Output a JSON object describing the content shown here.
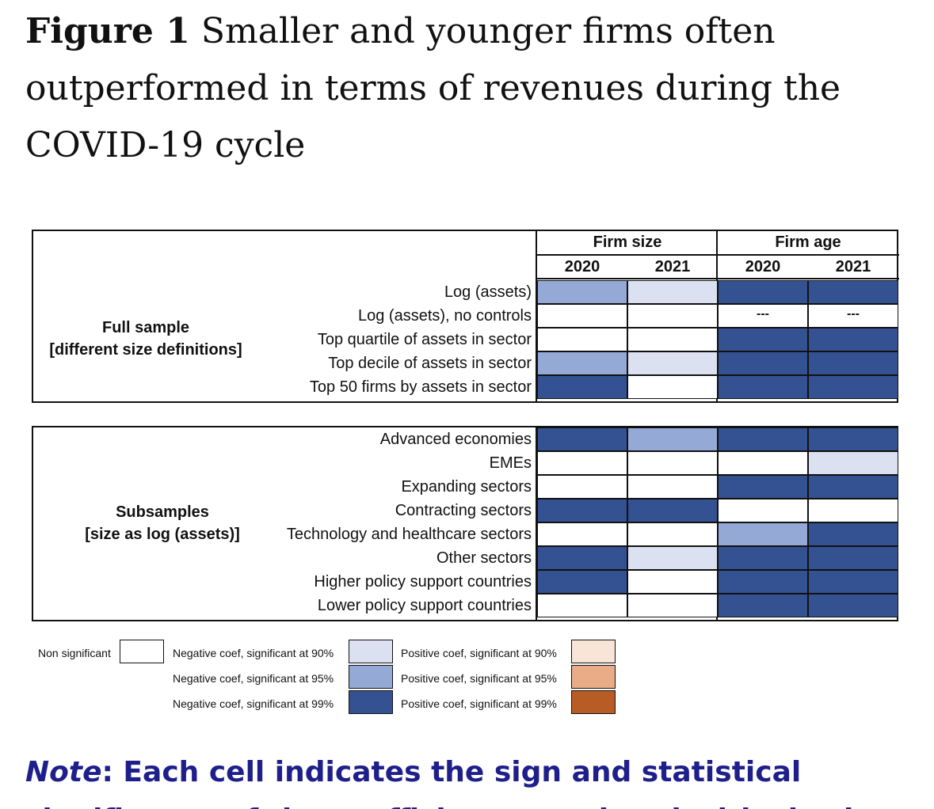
{
  "title": {
    "prefix": "Figure 1",
    "text": "Smaller and younger firms often outperformed in terms of revenues during the COVID-19 cycle"
  },
  "chart_data": {
    "type": "table",
    "column_groups": [
      {
        "label": "Firm size",
        "years": [
          "2020",
          "2021"
        ]
      },
      {
        "label": "Firm age",
        "years": [
          "2020",
          "2021"
        ]
      }
    ],
    "colors": {
      "non_significant": "#ffffff",
      "neg90": "#dbe1f0",
      "neg95": "#94a9d6",
      "neg99": "#345292",
      "pos90": "#f8e5d8",
      "pos95": "#e9ac86",
      "pos99": "#b85c26"
    },
    "panels": [
      {
        "group_label_lines": [
          "Full sample",
          "[different size definitions]"
        ],
        "rows": [
          {
            "label": "Log (assets)",
            "cells": [
              "neg95",
              "neg90",
              "neg99",
              "neg99"
            ]
          },
          {
            "label": "Log (assets), no controls",
            "cells": [
              "ns",
              "ns",
              "na",
              "na"
            ]
          },
          {
            "label": "Top quartile of assets in sector",
            "cells": [
              "ns",
              "ns",
              "neg99",
              "neg99"
            ]
          },
          {
            "label": "Top decile of assets in sector",
            "cells": [
              "neg95",
              "neg90",
              "neg99",
              "neg99"
            ]
          },
          {
            "label": "Top 50 firms by assets in sector",
            "cells": [
              "neg99",
              "ns",
              "neg99",
              "neg99"
            ]
          }
        ]
      },
      {
        "group_label_lines": [
          "Subsamples",
          "[size as log (assets)]"
        ],
        "rows": [
          {
            "label": "Advanced economies",
            "cells": [
              "neg99",
              "neg95",
              "neg99",
              "neg99"
            ]
          },
          {
            "label": "EMEs",
            "cells": [
              "ns",
              "ns",
              "ns",
              "neg90"
            ]
          },
          {
            "label": "Expanding sectors",
            "cells": [
              "ns",
              "ns",
              "neg99",
              "neg99"
            ]
          },
          {
            "label": "Contracting sectors",
            "cells": [
              "neg99",
              "neg99",
              "ns",
              "ns"
            ]
          },
          {
            "label": "Technology and healthcare sectors",
            "cells": [
              "ns",
              "ns",
              "neg95",
              "neg99"
            ]
          },
          {
            "label": "Other sectors",
            "cells": [
              "neg99",
              "neg90",
              "neg99",
              "neg99"
            ]
          },
          {
            "label": "Higher policy support countries",
            "cells": [
              "neg99",
              "ns",
              "neg99",
              "neg99"
            ]
          },
          {
            "label": "Lower policy support countries",
            "cells": [
              "ns",
              "ns",
              "neg99",
              "neg99"
            ]
          }
        ]
      }
    ],
    "not_available_marker": "---",
    "legend": [
      {
        "key": "ns",
        "label": "Non significant"
      },
      {
        "key": "neg90",
        "label": "Negative coef, significant at 90%"
      },
      {
        "key": "neg95",
        "label": "Negative coef, significant at 95%"
      },
      {
        "key": "neg99",
        "label": "Negative coef, significant at 99%"
      },
      {
        "key": "pos90",
        "label": "Positive coef, significant at 90%"
      },
      {
        "key": "pos95",
        "label": "Positive coef, significant at 95%"
      },
      {
        "key": "pos99",
        "label": "Positive coef, significant at 99%"
      }
    ]
  },
  "note": {
    "prefix": "Note",
    "text": ": Each cell indicates the sign and statistical",
    "continuation": "significance of the coefficient associated with size in"
  }
}
